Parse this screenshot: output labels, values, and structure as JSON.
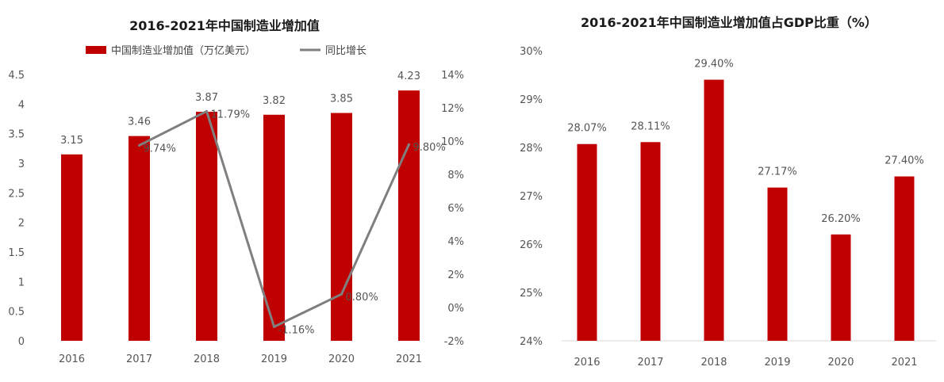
{
  "chart_data": [
    {
      "type": "bar",
      "title": "2016-2021年中国制造业增加值",
      "categories": [
        "2016",
        "2017",
        "2018",
        "2019",
        "2020",
        "2021"
      ],
      "series": [
        {
          "name": "中国制造业增加值（万亿美元）",
          "type": "bar",
          "axis": "left",
          "color": "#c00000",
          "values": [
            3.15,
            3.46,
            3.87,
            3.82,
            3.85,
            4.23
          ],
          "labels": [
            "3.15",
            "3.46",
            "3.87",
            "3.82",
            "3.85",
            "4.23"
          ]
        },
        {
          "name": "同比增长",
          "type": "line",
          "axis": "right",
          "color": "#7f7f7f",
          "values": [
            null,
            9.74,
            11.79,
            -1.16,
            0.8,
            9.8
          ],
          "labels": [
            "",
            "9.74%",
            "11.79%",
            "-1.16%",
            "0.80%",
            "9.80%"
          ]
        }
      ],
      "y_left": {
        "min": 0,
        "max": 4.5,
        "ticks": [
          "0",
          "0.5",
          "1",
          "1.5",
          "2",
          "2.5",
          "3",
          "3.5",
          "4",
          "4.5"
        ]
      },
      "y_right": {
        "min": -2,
        "max": 14,
        "ticks": [
          "-2%",
          "0%",
          "2%",
          "4%",
          "6%",
          "8%",
          "10%",
          "12%",
          "14%"
        ]
      },
      "grid": false,
      "legend": "top"
    },
    {
      "type": "bar",
      "title": "2016-2021年中国制造业增加值占GDP比重（%）",
      "categories": [
        "2016",
        "2017",
        "2018",
        "2019",
        "2020",
        "2021"
      ],
      "series": [
        {
          "type": "bar",
          "color": "#c00000",
          "values": [
            28.07,
            28.11,
            29.4,
            27.17,
            26.2,
            27.4
          ],
          "labels": [
            "28.07%",
            "28.11%",
            "29.40%",
            "27.17%",
            "26.20%",
            "27.40%"
          ]
        }
      ],
      "y": {
        "min": 24,
        "max": 30,
        "ticks": [
          "24%",
          "25%",
          "26%",
          "27%",
          "28%",
          "29%",
          "30%"
        ]
      },
      "grid": false,
      "legend": "none"
    }
  ]
}
